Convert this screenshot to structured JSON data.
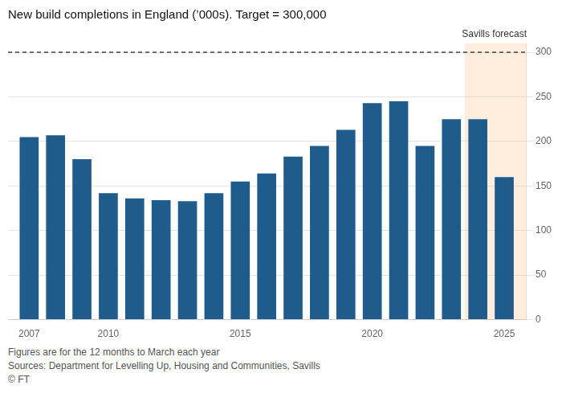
{
  "chart_data": {
    "type": "bar",
    "title": "New build completions in England (’000s). Target = 300,000",
    "x": [
      2007,
      2008,
      2009,
      2010,
      2011,
      2012,
      2013,
      2014,
      2015,
      2016,
      2017,
      2018,
      2019,
      2020,
      2021,
      2022,
      2023,
      2024,
      2025
    ],
    "values": [
      205,
      207,
      180,
      142,
      136,
      134,
      133,
      142,
      155,
      164,
      183,
      195,
      213,
      243,
      245,
      195,
      225,
      225,
      160
    ],
    "color": "#1f5c8b",
    "xlim": [
      2006.2,
      2025.85
    ],
    "xticks": [
      2007,
      2010,
      2015,
      2020,
      2025
    ],
    "ylim": [
      0,
      310
    ],
    "yticks": [
      0,
      50,
      100,
      150,
      200,
      250,
      300
    ],
    "grid": true,
    "target_line": 300,
    "forecast_start": 2024,
    "forecast_label": "Savills forecast",
    "footnotes": [
      "Figures are for the 12 months to March each year",
      "Sources: Department for Levelling Up, Housing and Communities, Savills",
      "© FT"
    ]
  }
}
